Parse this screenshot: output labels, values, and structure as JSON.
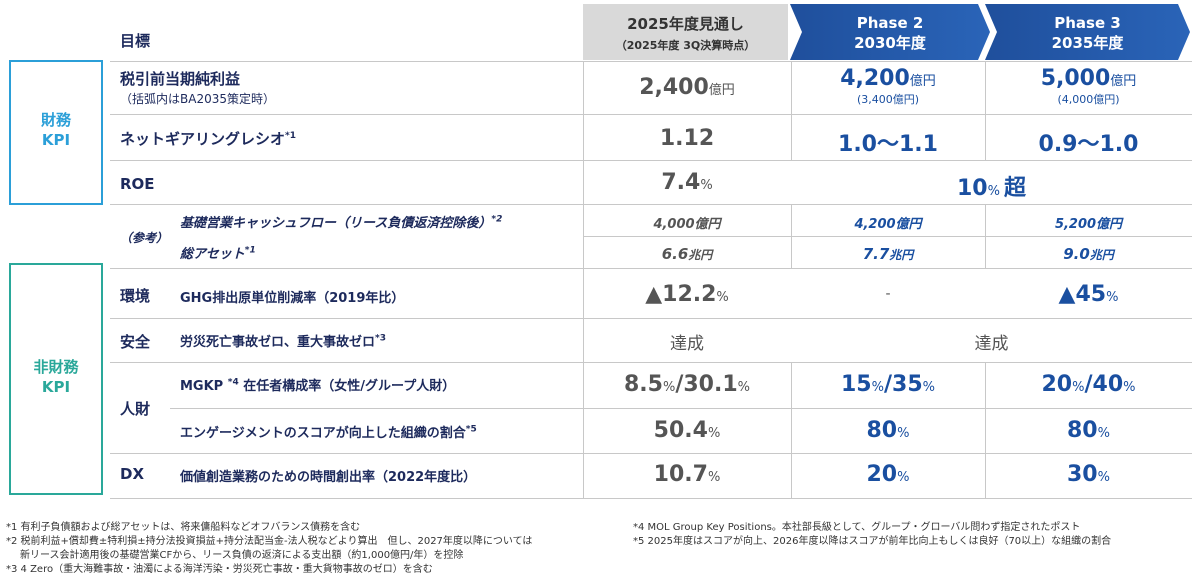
{
  "header": {
    "goal": "目標",
    "col2025_line1": "2025年度見通し",
    "col2025_line2": "（2025年度 3Q決算時点）",
    "phase2_line1": "Phase 2",
    "phase2_line2": "2030年度",
    "phase3_line1": "Phase 3",
    "phase3_line2": "2035年度"
  },
  "categories": {
    "financial_line1": "財務",
    "financial_line2": "KPI",
    "nonfinancial_line1": "非財務",
    "nonfinancial_line2": "KPI"
  },
  "rows": {
    "profit": {
      "label": "税引前当期純利益",
      "sublabel": "（括弧内はBA2035策定時）",
      "v2025": "2,400",
      "v2025_unit": "億円",
      "v2030": "4,200",
      "v2030_unit": "億円",
      "v2030_paren": "(3,400億円)",
      "v2035": "5,000",
      "v2035_unit": "億円",
      "v2035_paren": "(4,000億円)"
    },
    "ngr": {
      "label": "ネットギアリングレシオ",
      "note": "*1",
      "v2025": "1.12",
      "v2030": "1.0〜1.1",
      "v2035": "0.9〜1.0"
    },
    "roe": {
      "label": "ROE",
      "v2025": "7.4",
      "v2025_unit": "%",
      "vmerged": "10",
      "vmerged_unit": "%",
      "vmerged_suffix": "超"
    },
    "reference": {
      "label": "（参考）",
      "cf_label": "基礎営業キャッシュフロー（リース負債返済控除後）",
      "cf_note": "*2",
      "cf_2025": "4,000億円",
      "cf_2030": "4,200億円",
      "cf_2035": "5,200億円",
      "assets_label": "総アセット",
      "assets_note": "*1",
      "assets_2025_num": "6.6",
      "assets_2025_unit": "兆円",
      "assets_2030_num": "7.7",
      "assets_2030_unit": "兆円",
      "assets_2035_num": "9.0",
      "assets_2035_unit": "兆円"
    },
    "environment": {
      "group": "環境",
      "label": "GHG排出原単位削減率（2019年比）",
      "v2025": "▲12.2",
      "v2025_unit": "%",
      "v2030": "-",
      "v2035": "▲45",
      "v2035_unit": "%"
    },
    "safety": {
      "group": "安全",
      "label": "労災死亡事故ゼロ、重大事故ゼロ",
      "note": "*3",
      "v2025": "達成",
      "vmerged": "達成"
    },
    "talent": {
      "group": "人財",
      "mgkp_label_a": "MGKP",
      "mgkp_note": "*4",
      "mgkp_label_b": "在任者構成率（女性/グループ人財）",
      "mgkp_2025_a": "8.5",
      "mgkp_2025_b": "30.1",
      "mgkp_2030_a": "15",
      "mgkp_2030_b": "35",
      "mgkp_2035_a": "20",
      "mgkp_2035_b": "40",
      "eng_label": "エンゲージメントのスコアが向上した組織の割合",
      "eng_note": "*5",
      "eng_2025": "50.4",
      "eng_2030": "80",
      "eng_2035": "80",
      "pct": "%",
      "slash": "/"
    },
    "dx": {
      "group": "DX",
      "label": "価値創造業務のための時間創出率（2022年度比）",
      "v2025": "10.7",
      "v2030": "20",
      "v2035": "30",
      "unit": "%"
    }
  },
  "footnotes": {
    "f1": "*1 有利子負債額および総アセットは、将来傭船料などオフバランス債務を含む",
    "f2a": "*2 税前利益+償却費±特利損±持分法投資損益+持分法配当金-法人税などより算出　但し、2027年度以降については",
    "f2b": "新リース会計適用後の基礎営業CFから、リース負債の返済による支出額（約1,000億円/年）を控除",
    "f3": "*3 4 Zero（重大海難事故・油濁による海洋汚染・労災死亡事故・重大貨物事故のゼロ）を含む",
    "f4": "*4 MOL Group Key Positions。本社部長級として、グループ・グローバル問わず指定されたポスト",
    "f5": "*5 2025年度はスコアが向上、2026年度以降はスコアが前年比向上もしくは良好（70以上）な組織の割合"
  },
  "colors": {
    "navy": "#1d2a5c",
    "blue_value": "#1a4fa0",
    "financial_border": "#2b9fd8",
    "nonfinancial_border": "#2aa89a",
    "phase_fill": "#1f5ba8",
    "header_gray": "#d9d9d9"
  }
}
